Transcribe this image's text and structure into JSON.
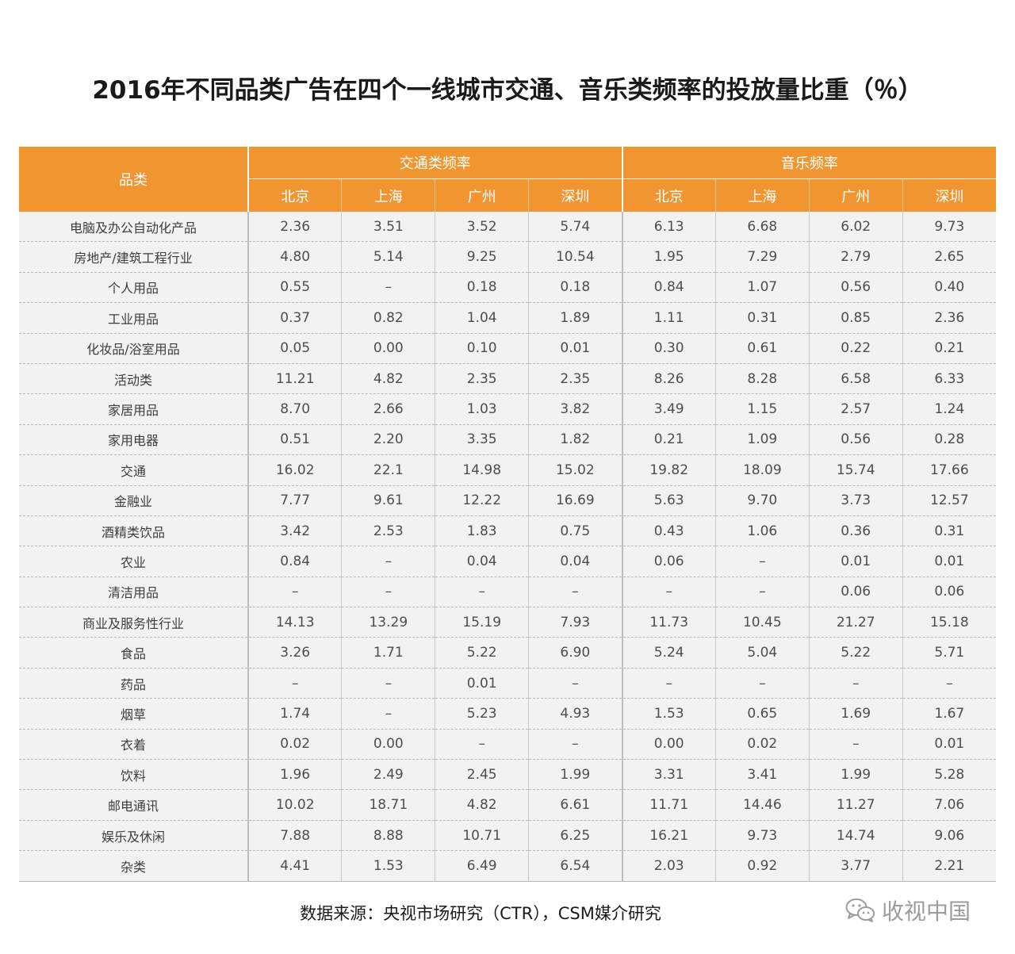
{
  "title": "2016年不同品类广告在四个一线城市交通、音乐类频率的投放量比重（％）",
  "table": {
    "category_header": "品类",
    "groups": [
      "交通类频率",
      "音乐频率"
    ],
    "cities": [
      "北京",
      "上海",
      "广州",
      "深圳",
      "北京",
      "上海",
      "广州",
      "深圳"
    ],
    "rows": [
      {
        "category": "电脑及办公自动化产品",
        "values": [
          "2.36",
          "3.51",
          "3.52",
          "5.74",
          "6.13",
          "6.68",
          "6.02",
          "9.73"
        ]
      },
      {
        "category": "房地产/建筑工程行业",
        "values": [
          "4.80",
          "5.14",
          "9.25",
          "10.54",
          "1.95",
          "7.29",
          "2.79",
          "2.65"
        ]
      },
      {
        "category": "个人用品",
        "values": [
          "0.55",
          "–",
          "0.18",
          "0.18",
          "0.84",
          "1.07",
          "0.56",
          "0.40"
        ]
      },
      {
        "category": "工业用品",
        "values": [
          "0.37",
          "0.82",
          "1.04",
          "1.89",
          "1.11",
          "0.31",
          "0.85",
          "2.36"
        ]
      },
      {
        "category": "化妆品/浴室用品",
        "values": [
          "0.05",
          "0.00",
          "0.10",
          "0.01",
          "0.30",
          "0.61",
          "0.22",
          "0.21"
        ]
      },
      {
        "category": "活动类",
        "values": [
          "11.21",
          "4.82",
          "2.35",
          "2.35",
          "8.26",
          "8.28",
          "6.58",
          "6.33"
        ]
      },
      {
        "category": "家居用品",
        "values": [
          "8.70",
          "2.66",
          "1.03",
          "3.82",
          "3.49",
          "1.15",
          "2.57",
          "1.24"
        ]
      },
      {
        "category": "家用电器",
        "values": [
          "0.51",
          "2.20",
          "3.35",
          "1.82",
          "0.21",
          "1.09",
          "0.56",
          "0.28"
        ]
      },
      {
        "category": "交通",
        "values": [
          "16.02",
          "22.1",
          "14.98",
          "15.02",
          "19.82",
          "18.09",
          "15.74",
          "17.66"
        ]
      },
      {
        "category": "金融业",
        "values": [
          "7.77",
          "9.61",
          "12.22",
          "16.69",
          "5.63",
          "9.70",
          "3.73",
          "12.57"
        ]
      },
      {
        "category": "酒精类饮品",
        "values": [
          "3.42",
          "2.53",
          "1.83",
          "0.75",
          "0.43",
          "1.06",
          "0.36",
          "0.31"
        ]
      },
      {
        "category": "农业",
        "values": [
          "0.84",
          "–",
          "0.04",
          "0.04",
          "0.06",
          "–",
          "0.01",
          "0.01"
        ]
      },
      {
        "category": "清洁用品",
        "values": [
          "–",
          "–",
          "–",
          "–",
          "–",
          "–",
          "0.06",
          "0.06"
        ]
      },
      {
        "category": "商业及服务性行业",
        "values": [
          "14.13",
          "13.29",
          "15.19",
          "7.93",
          "11.73",
          "10.45",
          "21.27",
          "15.18"
        ]
      },
      {
        "category": "食品",
        "values": [
          "3.26",
          "1.71",
          "5.22",
          "6.90",
          "5.24",
          "5.04",
          "5.22",
          "5.71"
        ]
      },
      {
        "category": "药品",
        "values": [
          "–",
          "–",
          "0.01",
          "–",
          "–",
          "–",
          "–",
          "–"
        ]
      },
      {
        "category": "烟草",
        "values": [
          "1.74",
          "–",
          "5.23",
          "4.93",
          "1.53",
          "0.65",
          "1.69",
          "1.67"
        ]
      },
      {
        "category": "衣着",
        "values": [
          "0.02",
          "0.00",
          "–",
          "–",
          "0.00",
          "0.02",
          "–",
          "0.01"
        ]
      },
      {
        "category": "饮料",
        "values": [
          "1.96",
          "2.49",
          "2.45",
          "1.99",
          "3.31",
          "3.41",
          "1.99",
          "5.28"
        ]
      },
      {
        "category": "邮电通讯",
        "values": [
          "10.02",
          "18.71",
          "4.82",
          "6.61",
          "11.71",
          "14.46",
          "11.27",
          "7.06"
        ]
      },
      {
        "category": "娱乐及休闲",
        "values": [
          "7.88",
          "8.88",
          "10.71",
          "6.25",
          "16.21",
          "9.73",
          "14.74",
          "9.06"
        ]
      },
      {
        "category": "杂类",
        "values": [
          "4.41",
          "1.53",
          "6.49",
          "6.54",
          "2.03",
          "0.92",
          "3.77",
          "2.21"
        ]
      }
    ]
  },
  "source": "数据来源：央视市场研究（CTR），CSM媒介研究",
  "watermark": {
    "icon": "wechat-icon",
    "text": "收视中国"
  },
  "colors": {
    "header_bg": "#f0952f",
    "row_bg": "#f2f2f2",
    "title": "#1a1a1a",
    "watermark": "#9c9c9c"
  }
}
